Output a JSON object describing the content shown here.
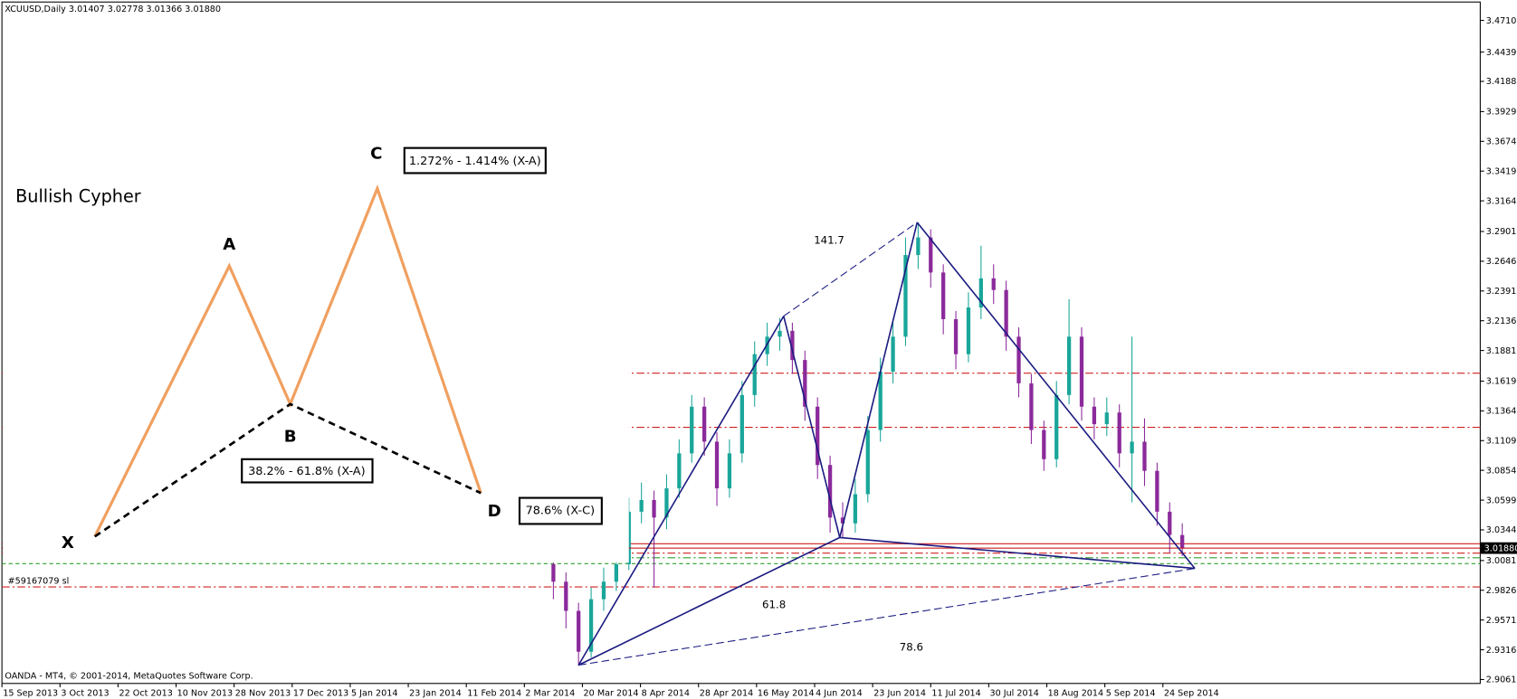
{
  "window": {
    "header": "XCUUSD,Daily  3.01407 3.02778 3.01366 3.01880",
    "footer": "OANDA - MT4, © 2001-2014, MetaQuotes Software Corp.",
    "order_label": "#59167079 sl"
  },
  "chart_data": {
    "type": "candlestick",
    "x_labels": [
      "15 Sep 2013",
      "3 Oct 2013",
      "22 Oct 2013",
      "10 Nov 2013",
      "28 Nov 2013",
      "17 Dec 2013",
      "5 Jan 2014",
      "23 Jan 2014",
      "11 Feb 2014",
      "2 Mar 2014",
      "20 Mar 2014",
      "8 Apr 2014",
      "28 Apr 2014",
      "16 May 2014",
      "4 Jun 2014",
      "23 Jun 2014",
      "11 Jul 2014",
      "30 Jul 2014",
      "18 Aug 2014",
      "5 Sep 2014",
      "24 Sep 2014"
    ],
    "open": [
      3.005,
      2.99,
      2.965,
      2.93,
      2.975,
      2.99,
      3.005,
      3.05,
      3.06,
      3.045,
      3.07,
      3.1,
      3.14,
      3.11,
      3.07,
      3.1,
      3.15,
      3.185,
      3.2,
      3.205,
      3.18,
      3.14,
      3.09,
      3.045,
      3.04,
      3.065,
      3.12,
      3.17,
      3.2,
      3.27,
      3.285,
      3.255,
      3.215,
      3.185,
      3.225,
      3.25,
      3.24,
      3.2,
      3.16,
      3.12,
      3.095,
      3.15,
      3.2,
      3.14,
      3.125,
      3.135,
      3.1,
      3.11,
      3.085,
      3.05,
      3.03
    ],
    "high": [
      3.018,
      2.998,
      2.972,
      2.985,
      3.002,
      3.015,
      3.062,
      3.075,
      3.068,
      3.082,
      3.112,
      3.15,
      3.148,
      3.118,
      3.112,
      3.162,
      3.196,
      3.212,
      3.216,
      3.212,
      3.188,
      3.148,
      3.098,
      3.058,
      3.078,
      3.132,
      3.182,
      3.212,
      3.285,
      3.298,
      3.292,
      3.262,
      3.222,
      3.238,
      3.278,
      3.262,
      3.248,
      3.208,
      3.168,
      3.128,
      3.162,
      3.232,
      3.208,
      3.148,
      3.148,
      3.142,
      3.2,
      3.13,
      3.092,
      3.058,
      3.04
    ],
    "low": [
      2.975,
      2.95,
      2.918,
      2.925,
      2.965,
      2.982,
      3.0,
      3.04,
      2.985,
      3.035,
      3.062,
      3.092,
      3.098,
      3.055,
      3.062,
      3.092,
      3.14,
      3.175,
      3.188,
      3.168,
      3.128,
      3.078,
      3.032,
      3.028,
      3.032,
      3.058,
      3.11,
      3.16,
      3.192,
      3.258,
      3.242,
      3.202,
      3.172,
      3.178,
      3.215,
      3.228,
      3.188,
      3.148,
      3.108,
      3.085,
      3.088,
      3.142,
      3.128,
      3.112,
      3.115,
      3.088,
      3.058,
      3.072,
      3.038,
      3.015,
      3.012
    ],
    "close": [
      2.99,
      2.965,
      2.93,
      2.975,
      2.99,
      3.005,
      3.05,
      3.06,
      3.045,
      3.07,
      3.1,
      3.14,
      3.11,
      3.07,
      3.1,
      3.15,
      3.185,
      3.2,
      3.205,
      3.18,
      3.14,
      3.09,
      3.045,
      3.04,
      3.065,
      3.12,
      3.17,
      3.2,
      3.27,
      3.285,
      3.255,
      3.215,
      3.185,
      3.225,
      3.25,
      3.24,
      3.2,
      3.16,
      3.12,
      3.095,
      3.15,
      3.2,
      3.14,
      3.125,
      3.135,
      3.1,
      3.11,
      3.085,
      3.05,
      3.03,
      3.019
    ],
    "up_color": "#1aa69a",
    "down_color": "#8b2a9b",
    "ylim": [
      2.9028,
      3.4868
    ],
    "yticks": [
      {
        "value": 3.47105,
        "label": "3.47105"
      },
      {
        "value": 3.4439,
        "label": "3.44390"
      },
      {
        "value": 3.4188,
        "label": "3.41880"
      },
      {
        "value": 3.3929,
        "label": "3.39290"
      },
      {
        "value": 3.3674,
        "label": "3.36740"
      },
      {
        "value": 3.3419,
        "label": "3.34190"
      },
      {
        "value": 3.3164,
        "label": "3.31640"
      },
      {
        "value": 3.29015,
        "label": "3.29015"
      },
      {
        "value": 3.26465,
        "label": "3.26465"
      },
      {
        "value": 3.23915,
        "label": "3.23915"
      },
      {
        "value": 3.21365,
        "label": "3.21365"
      },
      {
        "value": 3.18815,
        "label": "3.18815"
      },
      {
        "value": 3.1619,
        "label": "3.16190"
      },
      {
        "value": 3.1364,
        "label": "3.13640"
      },
      {
        "value": 3.1109,
        "label": "3.11090"
      },
      {
        "value": 3.08545,
        "label": "3.08545"
      },
      {
        "value": 3.0599,
        "label": "3.05990"
      },
      {
        "value": 3.0344,
        "label": "3.03440"
      },
      {
        "value": 3.00815,
        "label": "3.00815"
      },
      {
        "value": 2.98265,
        "label": "2.98265"
      },
      {
        "value": 2.95715,
        "label": "2.95715"
      },
      {
        "value": 2.93165,
        "label": "2.93165"
      },
      {
        "value": 2.90615,
        "label": "2.90615"
      }
    ],
    "current_price": {
      "value": 3.0188,
      "label": "3.01880"
    },
    "levels": [
      {
        "value": 3.1687,
        "color": "#d02020",
        "style": "dashdot"
      },
      {
        "value": 3.1223,
        "color": "#d02020",
        "style": "dashdot"
      },
      {
        "value": 2.9855,
        "color": "#d02020",
        "style": "dashdot"
      },
      {
        "value": 3.0225,
        "color": "#d02020",
        "style": "solid"
      },
      {
        "value": 3.0145,
        "color": "#d02020",
        "style": "dashdot"
      },
      {
        "value": 3.0105,
        "color": "#30a030",
        "style": "dashdot"
      },
      {
        "value": 3.0055,
        "color": "#30a030",
        "style": "dashed"
      }
    ],
    "annotations": [
      "141.7",
      "61.8",
      "78.6"
    ]
  },
  "overlay": {
    "title": "Bullish Cypher",
    "points": [
      "X",
      "A",
      "B",
      "C",
      "D"
    ],
    "ratio_c": "1.272% - 1.414% (X-A)",
    "ratio_b": "38.2% - 61.8% (X-A)",
    "ratio_d": "78.6% (X-C)"
  }
}
